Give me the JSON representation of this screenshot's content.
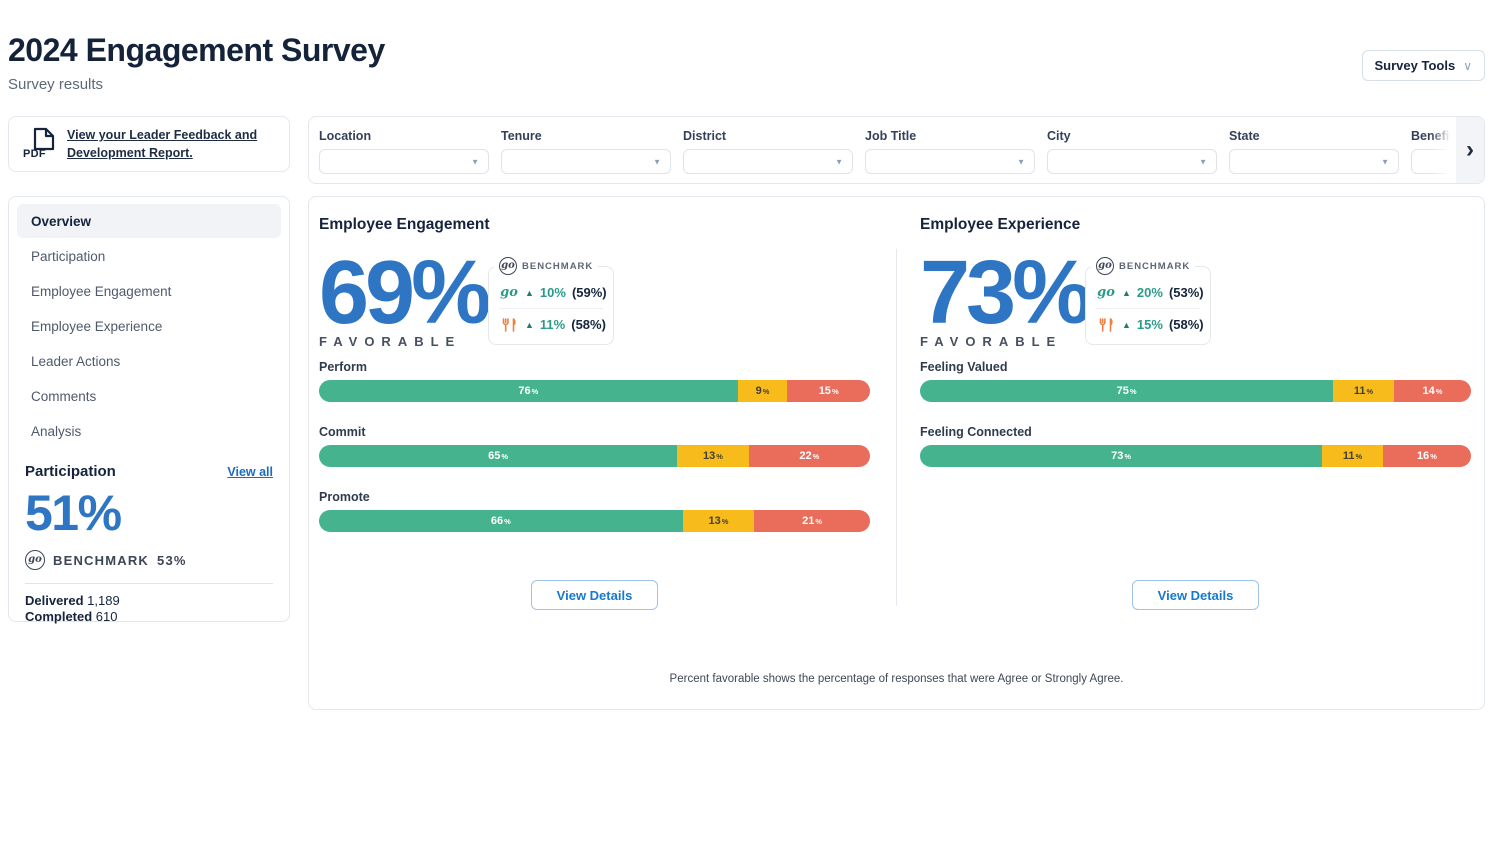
{
  "icons": {
    "chevron_down": "∨",
    "select_caret": "▼",
    "chevron_right": "›",
    "up_arrow": "▲",
    "go_logo": "go",
    "percent": "%"
  },
  "colors": {
    "accent_blue": "#2e75c4",
    "link_blue": "#1b6cc0",
    "favorable_green": "#45b48e",
    "neutral_yellow": "#f7bc1c",
    "unfavorable_red": "#ea6d5c",
    "benchmark_teal": "#2a9b8a",
    "industry_orange": "#ee8043"
  },
  "header": {
    "title": "2024 Engagement Survey",
    "subtitle": "Survey results",
    "survey_tools_label": "Survey Tools"
  },
  "pdf_card": {
    "icon_label": "PDF",
    "link_text": "View your Leader Feedback and Development Report."
  },
  "filters": {
    "items": [
      {
        "label": "Location"
      },
      {
        "label": "Tenure"
      },
      {
        "label": "District"
      },
      {
        "label": "Job Title"
      },
      {
        "label": "City"
      },
      {
        "label": "State"
      },
      {
        "label": "Benefits Eligible"
      }
    ]
  },
  "sidebar": {
    "nav": [
      {
        "label": "Overview"
      },
      {
        "label": "Participation"
      },
      {
        "label": "Employee Engagement"
      },
      {
        "label": "Employee Experience"
      },
      {
        "label": "Leader Actions"
      },
      {
        "label": "Comments"
      },
      {
        "label": "Analysis"
      }
    ],
    "participation": {
      "heading": "Participation",
      "view_all": "View all",
      "score": "51%",
      "benchmark_label": "BENCHMARK",
      "benchmark_value": "53%",
      "delivered_label": "Delivered",
      "delivered_value": "1,189",
      "completed_label": "Completed",
      "completed_value": "610"
    }
  },
  "main": {
    "panels": [
      {
        "title": "Employee Engagement",
        "score": "69%",
        "favorable_label": "FAVORABLE",
        "benchmark": {
          "header": "BENCHMARK",
          "rows": [
            {
              "icon": "go-logo",
              "delta": "10%",
              "base": "(59%)"
            },
            {
              "icon": "utensils",
              "delta": "11%",
              "base": "(58%)"
            }
          ]
        },
        "bars": [
          {
            "label": "Perform",
            "favorable": 76,
            "neutral": 9,
            "unfavorable": 15
          },
          {
            "label": "Commit",
            "favorable": 65,
            "neutral": 13,
            "unfavorable": 22
          },
          {
            "label": "Promote",
            "favorable": 66,
            "neutral": 13,
            "unfavorable": 21
          }
        ],
        "view_details": "View Details"
      },
      {
        "title": "Employee Experience",
        "score": "73%",
        "favorable_label": "FAVORABLE",
        "benchmark": {
          "header": "BENCHMARK",
          "rows": [
            {
              "icon": "go-logo",
              "delta": "20%",
              "base": "(53%)"
            },
            {
              "icon": "utensils",
              "delta": "15%",
              "base": "(58%)"
            }
          ]
        },
        "bars": [
          {
            "label": "Feeling Valued",
            "favorable": 75,
            "neutral": 11,
            "unfavorable": 14
          },
          {
            "label": "Feeling Connected",
            "favorable": 73,
            "neutral": 11,
            "unfavorable": 16
          }
        ],
        "view_details": "View Details"
      }
    ],
    "footnote": "Percent favorable shows the percentage of responses that were Agree or Strongly Agree."
  }
}
